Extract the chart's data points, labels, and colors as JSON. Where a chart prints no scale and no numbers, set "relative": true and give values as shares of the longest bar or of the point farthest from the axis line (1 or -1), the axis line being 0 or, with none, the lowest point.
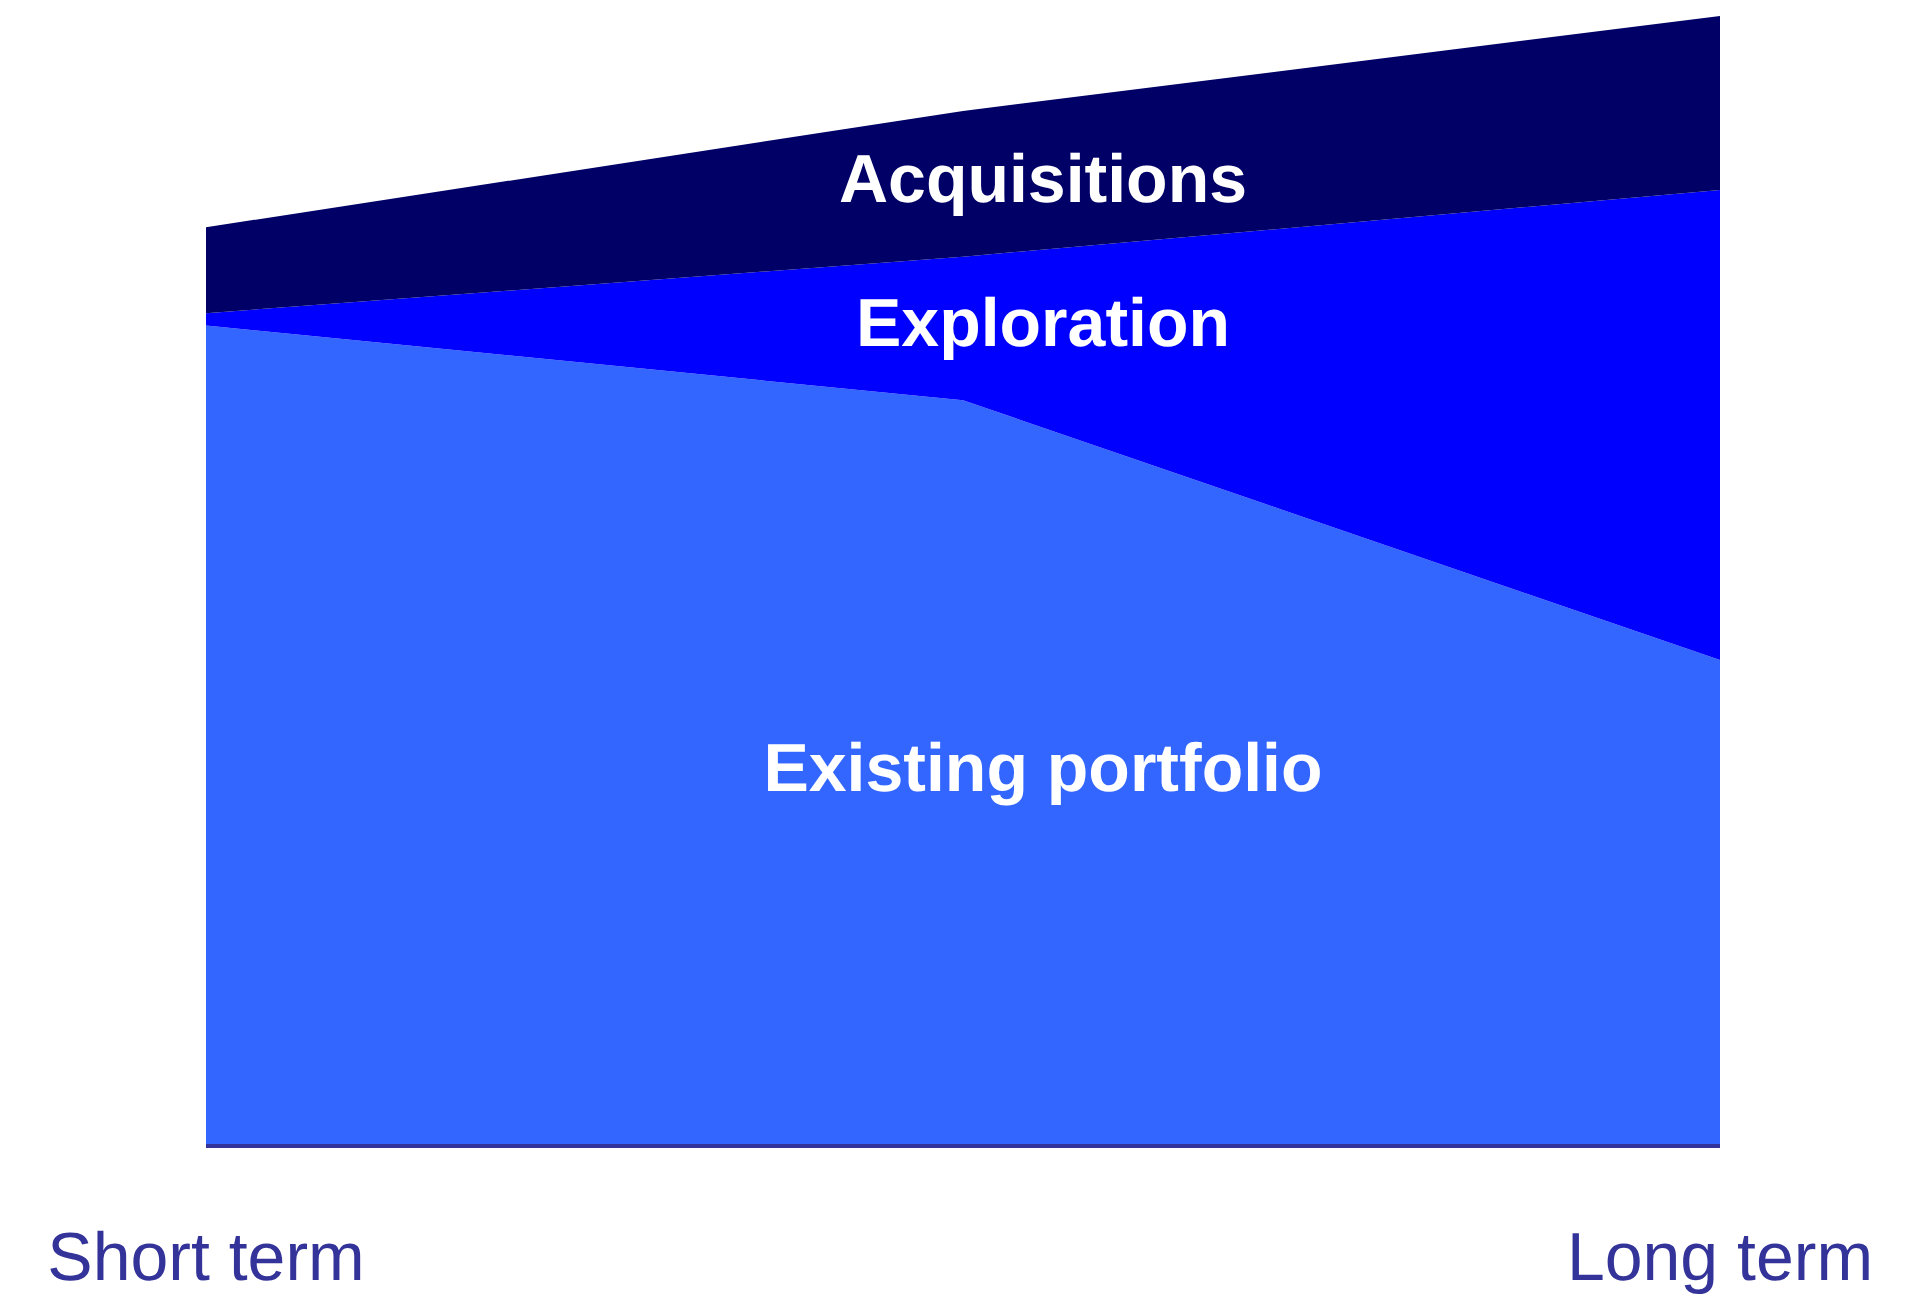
{
  "chart_data": {
    "type": "area",
    "stacked": true,
    "relative": true,
    "legend": false,
    "categories": [
      "Short term",
      null,
      "Long term"
    ],
    "series": [
      {
        "name": "Existing portfolio",
        "color": "#3366ff",
        "values": [
          0.726,
          0.66,
          0.43
        ]
      },
      {
        "name": "Exploration",
        "color": "#0000ff",
        "values": [
          0.011,
          0.127,
          0.416
        ]
      },
      {
        "name": "Acquisitions",
        "color": "#000066",
        "values": [
          0.076,
          0.129,
          0.154
        ]
      }
    ]
  }
}
